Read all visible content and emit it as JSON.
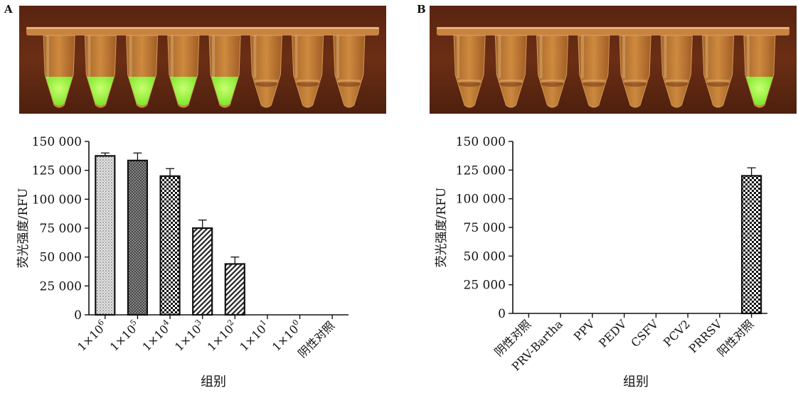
{
  "panels": [
    {
      "label": "A"
    },
    {
      "label": "B"
    }
  ],
  "photo_a": {
    "background": "#6b2e14",
    "tubes": [
      {
        "fluorescent": true
      },
      {
        "fluorescent": true
      },
      {
        "fluorescent": true
      },
      {
        "fluorescent": true
      },
      {
        "fluorescent": true
      },
      {
        "fluorescent": false
      },
      {
        "fluorescent": false
      },
      {
        "fluorescent": false
      }
    ]
  },
  "photo_b": {
    "background": "#6b2e14",
    "tubes": [
      {
        "fluorescent": false
      },
      {
        "fluorescent": false
      },
      {
        "fluorescent": false
      },
      {
        "fluorescent": false
      },
      {
        "fluorescent": false
      },
      {
        "fluorescent": false
      },
      {
        "fluorescent": false
      },
      {
        "fluorescent": true
      }
    ]
  },
  "colors": {
    "green_signal": "#7ee62a",
    "tube_amber": "#e8a24a",
    "bar_stroke": "#111111"
  },
  "chart_data": [
    {
      "type": "bar",
      "xlabel": "组别",
      "ylabel": "荧光强度/RFU",
      "ylim": [
        0,
        150000
      ],
      "yticks": [
        "0",
        "25 000",
        "50 000",
        "75 000",
        "100 000",
        "125 000",
        "150 000"
      ],
      "ytick_values": [
        0,
        25000,
        50000,
        75000,
        100000,
        125000,
        150000
      ],
      "categories": [
        {
          "base": "1×10",
          "exp": "6"
        },
        {
          "base": "1×10",
          "exp": "5"
        },
        {
          "base": "1×10",
          "exp": "4"
        },
        {
          "base": "1×10",
          "exp": "3"
        },
        {
          "base": "1×10",
          "exp": "2"
        },
        {
          "base": "1×10",
          "exp": "1"
        },
        {
          "base": "1×10",
          "exp": "0"
        },
        {
          "base": "阴性对照",
          "exp": ""
        }
      ],
      "values": [
        137500,
        133500,
        120000,
        75000,
        44000,
        0,
        0,
        0
      ],
      "errors": [
        2500,
        6500,
        6500,
        7000,
        6000,
        0,
        0,
        0
      ],
      "patterns": [
        "dots",
        "crosshatch",
        "checker",
        "diagonal",
        "diagonal",
        "none",
        "none",
        "none"
      ]
    },
    {
      "type": "bar",
      "xlabel": "组别",
      "ylabel": "荧光强度/RFU",
      "ylim": [
        0,
        150000
      ],
      "yticks": [
        "0",
        "25 000",
        "50 000",
        "75 000",
        "100 000",
        "125 000",
        "150 000"
      ],
      "ytick_values": [
        0,
        25000,
        50000,
        75000,
        100000,
        125000,
        150000
      ],
      "categories": [
        {
          "base": "阴性对照",
          "exp": ""
        },
        {
          "base": "PRV-Bartha",
          "exp": ""
        },
        {
          "base": "PPV",
          "exp": ""
        },
        {
          "base": "PEDV",
          "exp": ""
        },
        {
          "base": "CSFV",
          "exp": ""
        },
        {
          "base": "PCV2",
          "exp": ""
        },
        {
          "base": "PRRSV",
          "exp": ""
        },
        {
          "base": "阳性对照",
          "exp": ""
        }
      ],
      "values": [
        0,
        0,
        0,
        0,
        0,
        0,
        0,
        120000
      ],
      "errors": [
        0,
        0,
        0,
        0,
        0,
        0,
        0,
        7000
      ],
      "patterns": [
        "none",
        "none",
        "none",
        "none",
        "none",
        "none",
        "none",
        "checker"
      ]
    }
  ]
}
